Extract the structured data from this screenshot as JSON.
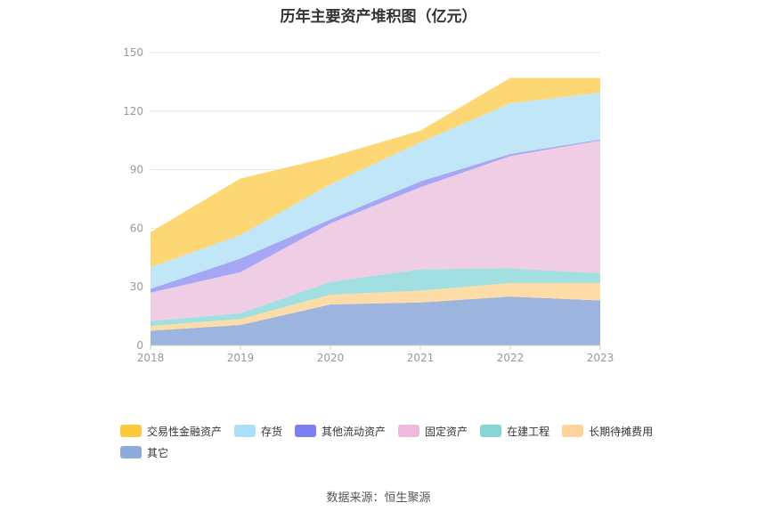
{
  "chart_data": {
    "type": "area",
    "stacked": true,
    "title": "历年主要资产堆积图（亿元）",
    "categories": [
      "2018",
      "2019",
      "2020",
      "2021",
      "2022",
      "2023"
    ],
    "ylim": [
      0,
      150
    ],
    "yticks": [
      0,
      30,
      60,
      90,
      120,
      150
    ],
    "grid": true,
    "legend_position": "bottom",
    "series": [
      {
        "name": "其它",
        "color": "#9db4de",
        "values": [
          7.5,
          10.5,
          21,
          22,
          25,
          23
        ]
      },
      {
        "name": "长期待摊费用",
        "color": "#fddca8",
        "values": [
          2.5,
          3,
          5,
          6,
          7,
          9
        ]
      },
      {
        "name": "在建工程",
        "color": "#a2dfe0",
        "values": [
          2.5,
          3,
          6.5,
          11,
          7.5,
          5
        ]
      },
      {
        "name": "固定资产",
        "color": "#eecde5",
        "values": [
          14.5,
          21,
          30,
          42,
          57.5,
          68
        ]
      },
      {
        "name": "其他流动资产",
        "color": "#a5a7f5",
        "values": [
          2,
          7,
          2,
          3,
          1,
          0.5
        ]
      },
      {
        "name": "存货",
        "color": "#c0e6f8",
        "values": [
          11,
          12,
          18,
          20,
          26,
          24
        ]
      },
      {
        "name": "交易性金融资产",
        "color": "#fed775",
        "values": [
          18,
          29,
          14,
          6,
          13,
          7.5
        ]
      }
    ]
  },
  "legend": [
    {
      "name": "交易性金融资产",
      "color": "#fdc73e"
    },
    {
      "name": "存货",
      "color": "#a9dffa"
    },
    {
      "name": "其他流动资产",
      "color": "#7c7ff3"
    },
    {
      "name": "固定资产",
      "color": "#ecb9dc"
    },
    {
      "name": "在建工程",
      "color": "#86d4d6"
    },
    {
      "name": "长期待摊费用",
      "color": "#fdd59b"
    },
    {
      "name": "其它",
      "color": "#8fabdb"
    }
  ],
  "source": "数据来源：恒生聚源"
}
